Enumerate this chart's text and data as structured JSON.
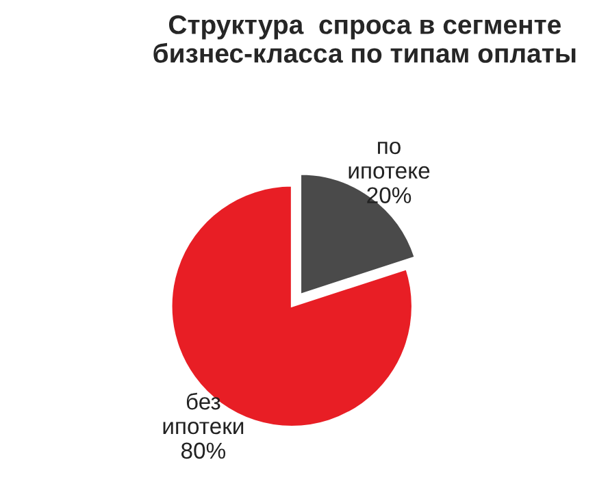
{
  "chart_data": {
    "type": "pie",
    "title": "Структура  спроса в сегменте\nбизнес-класса по типам оплаты",
    "categories": [
      "по ипотеке",
      "без ипотеки"
    ],
    "values": [
      20,
      80
    ],
    "value_labels": [
      "20%",
      "80%"
    ],
    "colors": [
      "#4a4a4a",
      "#e81e25"
    ],
    "legend": false
  }
}
